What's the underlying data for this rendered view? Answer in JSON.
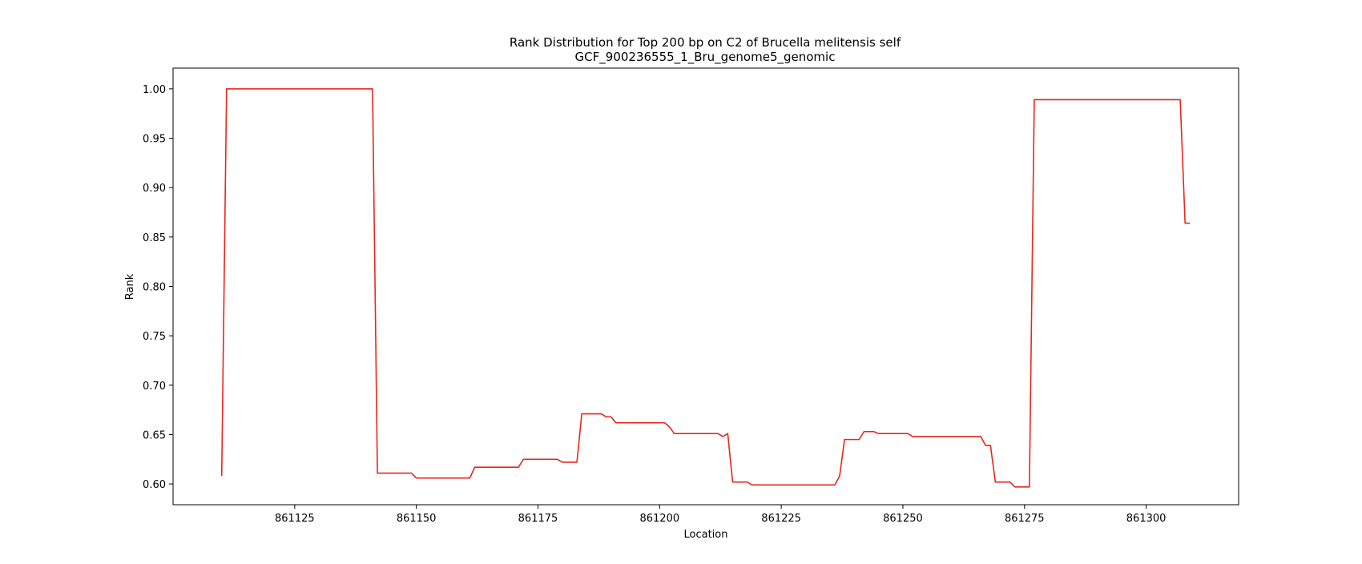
{
  "chart_data": {
    "type": "line",
    "title_line1": "Rank Distribution for Top 200 bp on C2 of Brucella melitensis self",
    "title_line2": "GCF_900236555_1_Bru_genome5_genomic",
    "xlabel": "Location",
    "ylabel": "Rank",
    "xlim": [
      861100,
      861319
    ],
    "ylim": [
      0.579,
      1.021
    ],
    "x_ticks": [
      861125,
      861150,
      861175,
      861200,
      861225,
      861250,
      861275,
      861300
    ],
    "x_tick_labels": [
      "861125",
      "861150",
      "861175",
      "861200",
      "861225",
      "861250",
      "861275",
      "861300"
    ],
    "y_ticks": [
      0.6,
      0.65,
      0.7,
      0.75,
      0.8,
      0.85,
      0.9,
      0.95,
      1.0
    ],
    "y_tick_labels": [
      "0.60",
      "0.65",
      "0.70",
      "0.75",
      "0.80",
      "0.85",
      "0.90",
      "0.95",
      "1.00"
    ],
    "line_color": "#e8261d",
    "grid": false,
    "series": [
      {
        "x": [
          861110,
          861111,
          861141,
          861142,
          861149,
          861150,
          861161,
          861162,
          861171,
          861172,
          861179,
          861180,
          861183,
          861184,
          861188,
          861189,
          861190,
          861191,
          861201,
          861202,
          861203,
          861212,
          861213,
          861214,
          861215,
          861218,
          861219,
          861236,
          861237,
          861238,
          861241,
          861242,
          861244,
          861245,
          861251,
          861252,
          861266,
          861267,
          861268,
          861269,
          861272,
          861273,
          861276,
          861277,
          861307,
          861308,
          861309
        ],
        "y": [
          0.608,
          1.0,
          1.0,
          0.611,
          0.611,
          0.606,
          0.606,
          0.617,
          0.617,
          0.625,
          0.625,
          0.622,
          0.622,
          0.671,
          0.671,
          0.668,
          0.668,
          0.662,
          0.662,
          0.658,
          0.651,
          0.651,
          0.648,
          0.651,
          0.602,
          0.602,
          0.599,
          0.599,
          0.608,
          0.645,
          0.645,
          0.653,
          0.653,
          0.651,
          0.651,
          0.648,
          0.648,
          0.639,
          0.639,
          0.602,
          0.602,
          0.597,
          0.597,
          0.989,
          0.989,
          0.864,
          0.864
        ]
      }
    ]
  }
}
